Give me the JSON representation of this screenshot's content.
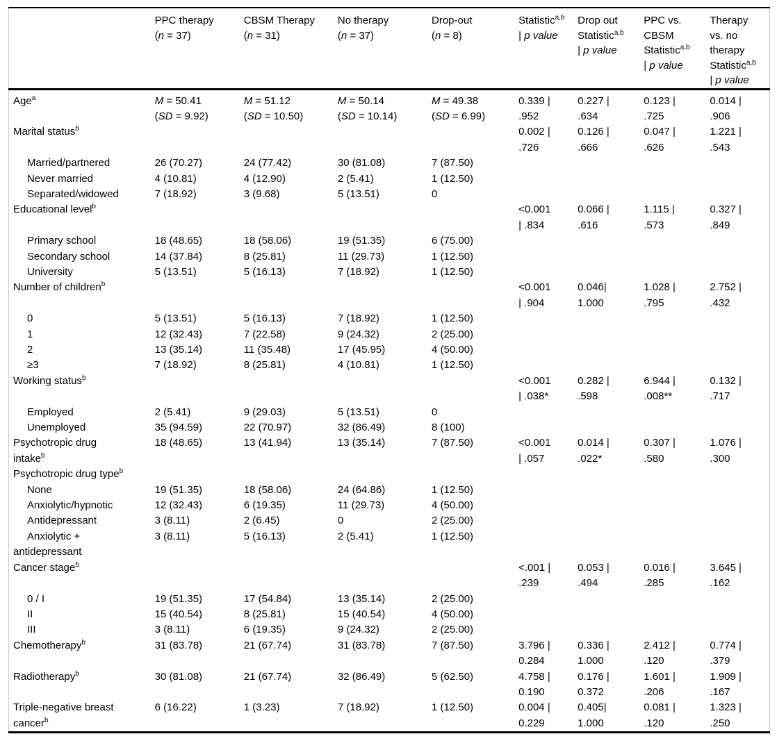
{
  "colors": {
    "background": "#ffffff",
    "text": "#000000",
    "rule": "#000000",
    "frame": "#c9c9c9"
  },
  "table": {
    "columns": [
      {
        "label": ""
      },
      {
        "label": "PPC therapy\n(*n* = 37)"
      },
      {
        "label": "CBSM Therapy\n(*n* = 31)"
      },
      {
        "label": "No therapy\n(*n* = 37)"
      },
      {
        "label": "Drop-out\n(*n* = 8)"
      },
      {
        "label": "Statistic^{a,b}\n| *p value*"
      },
      {
        "label": "Drop out\nStatistic^{a,b}\n| *p value*"
      },
      {
        "label": "PPC vs.\nCBSM\nStatistic^{a,b}\n| *p value*"
      },
      {
        "label": "Therapy\nvs. no\ntherapy\nStatistic^{a,b}\n| *p value*"
      }
    ],
    "rows": [
      {
        "label": "Age^{a}",
        "indent": false,
        "cells": [
          "*M* = 50.41\n(*SD* = 9.92)",
          "*M* = 51.12\n(*SD* = 10.50)",
          "*M* = 50.14\n(*SD* = 10.14)",
          "*M* = 49.38\n(*SD* = 6.99)",
          "0.339 |\n.952",
          "0.227 |\n.634",
          "0.123 |\n.725",
          "0.014 |\n.906"
        ]
      },
      {
        "label": "Marital status^{b}",
        "indent": false,
        "cells": [
          "",
          "",
          "",
          "",
          "0.002 |\n.726",
          "0.126 |\n.666",
          "0.047 |\n.626",
          "1.221 |\n.543"
        ]
      },
      {
        "label": "Married/partnered",
        "indent": true,
        "cells": [
          "26 (70.27)",
          "24 (77.42)",
          "30 (81.08)",
          "7 (87.50)",
          "",
          "",
          "",
          ""
        ]
      },
      {
        "label": "Never married",
        "indent": true,
        "cells": [
          "4 (10.81)",
          "4 (12.90)",
          "2 (5.41)",
          "1 (12.50)",
          "",
          "",
          "",
          ""
        ]
      },
      {
        "label": "Separated/widowed",
        "indent": true,
        "cells": [
          "7 (18.92)",
          "3 (9.68)",
          "5 (13.51)",
          "0",
          "",
          "",
          "",
          ""
        ]
      },
      {
        "label": "Educational level^{b}",
        "indent": false,
        "cells": [
          "",
          "",
          "",
          "",
          "<0.001\n| .834",
          "0.066 |\n.616",
          "1.115 |\n.573",
          "0.327 |\n.849"
        ]
      },
      {
        "label": "Primary school",
        "indent": true,
        "cells": [
          "18 (48.65)",
          "18 (58.06)",
          "19 (51.35)",
          "6 (75.00)",
          "",
          "",
          "",
          ""
        ]
      },
      {
        "label": "Secondary school",
        "indent": true,
        "cells": [
          "14 (37.84)",
          "8 (25.81)",
          "11 (29.73)",
          "1 (12.50)",
          "",
          "",
          "",
          ""
        ]
      },
      {
        "label": "University",
        "indent": true,
        "cells": [
          "5 (13.51)",
          "5 (16.13)",
          "7 (18.92)",
          "1 (12.50)",
          "",
          "",
          "",
          ""
        ]
      },
      {
        "label": "Number of children^{b}",
        "indent": false,
        "cells": [
          "",
          "",
          "",
          "",
          "<0.001\n| .904",
          "0.046|\n1.000",
          "1.028 |\n.795",
          "2.752 |\n.432"
        ]
      },
      {
        "label": "0",
        "indent": true,
        "cells": [
          "5 (13.51)",
          "5 (16.13)",
          "7 (18.92)",
          "1 (12.50)",
          "",
          "",
          "",
          ""
        ]
      },
      {
        "label": "1",
        "indent": true,
        "cells": [
          "12 (32.43)",
          "7 (22.58)",
          "9 (24.32)",
          "2 (25.00)",
          "",
          "",
          "",
          ""
        ]
      },
      {
        "label": "2",
        "indent": true,
        "cells": [
          "13 (35.14)",
          "11 (35.48)",
          "17 (45.95)",
          "4 (50.00)",
          "",
          "",
          "",
          ""
        ]
      },
      {
        "label": "≥3",
        "indent": true,
        "cells": [
          "7 (18.92)",
          "8 (25.81)",
          "4 (10.81)",
          "1 (12.50)",
          "",
          "",
          "",
          ""
        ]
      },
      {
        "label": "Working status^{b}",
        "indent": false,
        "cells": [
          "",
          "",
          "",
          "",
          "<0.001\n| .038*",
          "0.282 |\n.598",
          "6.944 |\n.008**",
          "0.132 |\n.717"
        ]
      },
      {
        "label": "Employed",
        "indent": true,
        "cells": [
          "2 (5.41)",
          "9 (29.03)",
          "5 (13.51)",
          "0",
          "",
          "",
          "",
          ""
        ]
      },
      {
        "label": "Unemployed",
        "indent": true,
        "cells": [
          "35 (94.59)",
          "22 (70.97)",
          "32 (86.49)",
          "8 (100)",
          "",
          "",
          "",
          ""
        ]
      },
      {
        "label": "Psychotropic drug\nintake^{b}",
        "indent": false,
        "cells": [
          "18 (48.65)",
          "13 (41.94)",
          "13 (35.14)",
          "7 (87.50)",
          "<0.001\n| .057",
          "0.014 |\n.022*",
          "0.307 |\n.580",
          "1.076 |\n.300"
        ]
      },
      {
        "label": "Psychotropic drug type^{b}",
        "indent": false,
        "cells": [
          "",
          "",
          "",
          "",
          "",
          "",
          "",
          ""
        ]
      },
      {
        "label": "None",
        "indent": true,
        "cells": [
          "19 (51.35)",
          "18 (58.06)",
          "24 (64.86)",
          "1 (12.50)",
          "",
          "",
          "",
          ""
        ]
      },
      {
        "label": "Anxiolytic/hypnotic",
        "indent": true,
        "cells": [
          "12 (32.43)",
          "6 (19.35)",
          "11 (29.73)",
          "4 (50.00)",
          "",
          "",
          "",
          ""
        ]
      },
      {
        "label": "Antidepressant",
        "indent": true,
        "cells": [
          "3 (8.11)",
          "2 (6.45)",
          "0",
          "2 (25.00)",
          "",
          "",
          "",
          ""
        ]
      },
      {
        "label": "Anxiolytic +\nantidepressant",
        "indent": true,
        "cells": [
          "3 (8.11)",
          "5 (16.13)",
          "2 (5.41)",
          "1 (12.50)",
          "",
          "",
          "",
          ""
        ]
      },
      {
        "label": "Cancer stage^{b}",
        "indent": false,
        "cells": [
          "",
          "",
          "",
          "",
          "<.001 |\n.239",
          "0.053 |\n.494",
          "0.016 |\n.285",
          "3.645 |\n.162"
        ]
      },
      {
        "label": "0 / I",
        "indent": true,
        "cells": [
          "19 (51.35)",
          "17 (54.84)",
          "13 (35.14)",
          "2 (25.00)",
          "",
          "",
          "",
          ""
        ]
      },
      {
        "label": "II",
        "indent": true,
        "cells": [
          "15 (40.54)",
          "8 (25.81)",
          "15 (40.54)",
          "4 (50.00)",
          "",
          "",
          "",
          ""
        ]
      },
      {
        "label": "III",
        "indent": true,
        "cells": [
          "3 (8.11)",
          "6 (19.35)",
          "9 (24.32)",
          "2 (25.00)",
          "",
          "",
          "",
          ""
        ]
      },
      {
        "label": "Chemotherapy^{b}",
        "indent": false,
        "cells": [
          "31 (83.78)",
          "21 (67.74)",
          "31 (83.78)",
          "7 (87.50)",
          "3.796 |\n0.284",
          "0.336 |\n1.000",
          "2.412 |\n.120",
          "0.774 |\n.379"
        ]
      },
      {
        "label": "Radiotherapy^{b}",
        "indent": false,
        "cells": [
          "30 (81.08)",
          "21 (67.74)",
          "32 (86.49)",
          "5 (62.50)",
          "4.758 |\n0.190",
          "0.176 |\n0.372",
          "1.601 |\n.206",
          "1.909 |\n.167"
        ]
      },
      {
        "label": "Triple-negative breast\ncancer^{b}",
        "indent": false,
        "cells": [
          "6 (16.22)",
          "1 (3.23)",
          "7 (18.92)",
          "1 (12.50)",
          "0.004 |\n0.229",
          "0.405|\n1.000",
          "0.081 |\n.120",
          "1.323 |\n.250"
        ]
      }
    ]
  }
}
